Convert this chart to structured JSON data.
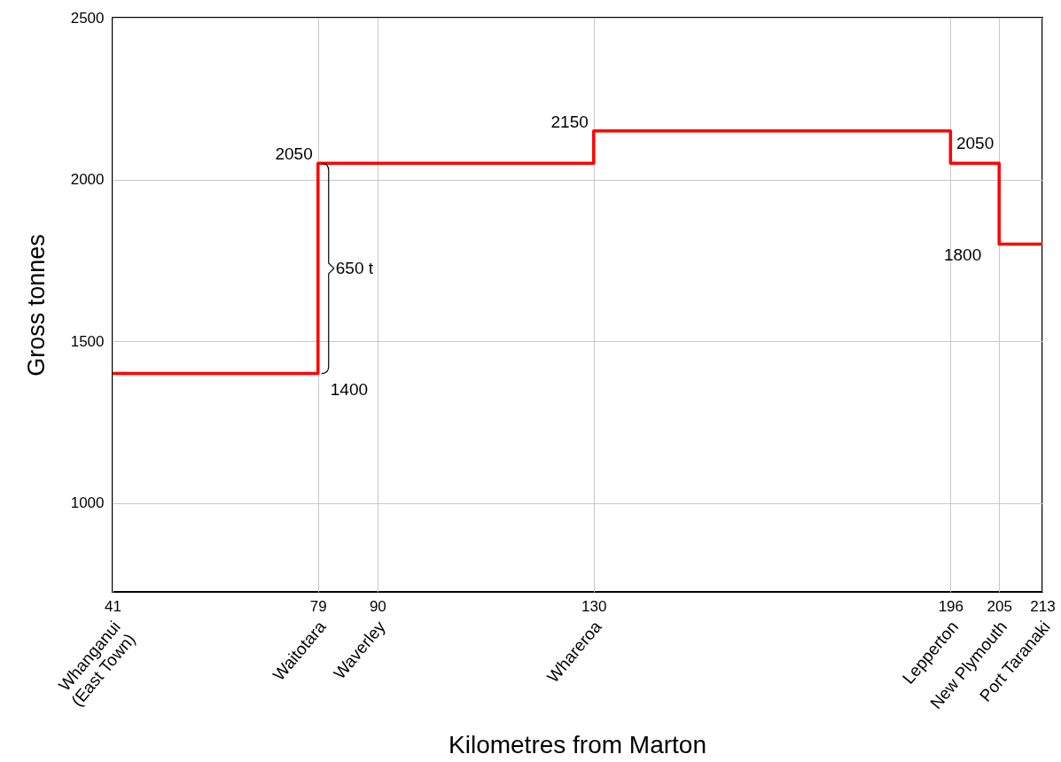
{
  "chart_data": {
    "type": "step",
    "xlabel": "Kilometres from Marton",
    "ylabel": "Gross tonnes",
    "x": [
      41,
      79,
      130,
      196,
      205,
      213
    ],
    "series": [
      {
        "color": "#ff0000",
        "values": [
          1400,
          2050,
          2150,
          2050,
          1800,
          1800
        ]
      }
    ],
    "xlim": [
      41,
      213
    ],
    "xticks": [
      41,
      79,
      90,
      130,
      196,
      205,
      213
    ],
    "ylim": [
      725,
      2500
    ],
    "yticks": [
      1000,
      1500,
      2000,
      2500
    ],
    "grid": true,
    "annotations": [
      {
        "text": "2050",
        "x": 79,
        "y": 2050
      },
      {
        "text": "1400",
        "x": 79,
        "y": 1400
      },
      {
        "text": "650 t",
        "x": 79,
        "y": 1725
      },
      {
        "text": "2150",
        "x": 130,
        "y": 2150
      },
      {
        "text": "2050",
        "x": 205,
        "y": 2050
      },
      {
        "text": "1800",
        "x": 205,
        "y": 1800
      },
      "Whanganui\n(East Town)",
      "Waitotara",
      "Waverley",
      "Whareroa",
      "Lepperton",
      "New Plymouth",
      "Port Taranaki"
    ]
  }
}
